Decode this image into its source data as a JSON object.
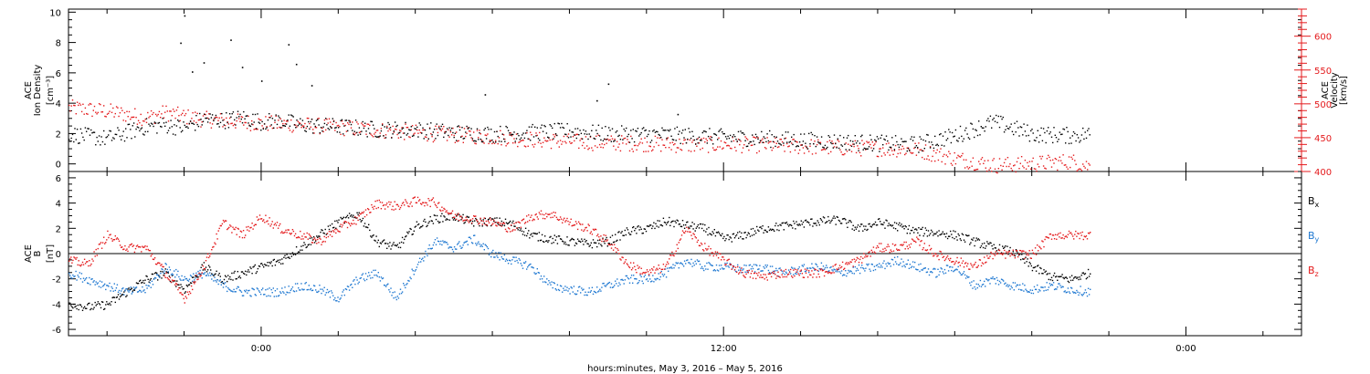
{
  "chart_data": [
    {
      "type": "scatter",
      "left_axis": {
        "label_lines": [
          "ACE",
          "Ion Density"
        ],
        "unit_label": "[cm⁻³]",
        "ylim": [
          -0.5,
          10.2
        ],
        "ticks": [
          0,
          2,
          4,
          6,
          8,
          10
        ]
      },
      "right_axis": {
        "label_lines": [
          "ACE",
          "Velocity"
        ],
        "unit_label": "[km/s]",
        "ylim": [
          400,
          640
        ],
        "ticks": [
          400,
          450,
          500,
          550,
          600
        ],
        "color": "#e41a1c"
      },
      "series": [
        {
          "name": "Ion Density",
          "axis": "left",
          "color": "#000000",
          "x": [
            -5.0,
            -4.0,
            -3.0,
            -2.5,
            -2.0,
            -1.5,
            -1.0,
            -0.5,
            0.0,
            0.5,
            1.0,
            2.0,
            3.0,
            4.0,
            5.0,
            6.0,
            7.0,
            8.0,
            9.0,
            10.0,
            11.0,
            12.0,
            13.0,
            14.0,
            15.0,
            16.0,
            17.0,
            18.0,
            19.0,
            20.0,
            21.0,
            21.5
          ],
          "y": [
            2.0,
            1.7,
            2.5,
            2.6,
            2.4,
            3.0,
            2.9,
            3.1,
            2.8,
            2.9,
            2.6,
            2.5,
            2.3,
            2.3,
            2.1,
            2.0,
            2.1,
            2.2,
            2.0,
            2.0,
            1.9,
            1.8,
            1.7,
            1.6,
            1.5,
            1.4,
            1.3,
            1.9,
            2.8,
            2.0,
            1.9,
            2.0
          ],
          "outliers": [
            [
              -2.0,
              9.8
            ],
            [
              -2.1,
              8.0
            ],
            [
              -0.8,
              8.2
            ],
            [
              -1.5,
              6.7
            ],
            [
              -0.5,
              6.4
            ],
            [
              0.7,
              7.9
            ],
            [
              0.9,
              6.6
            ],
            [
              -1.8,
              6.1
            ],
            [
              0.0,
              5.5
            ],
            [
              1.3,
              5.2
            ],
            [
              9.0,
              5.3
            ],
            [
              5.8,
              4.6
            ],
            [
              8.7,
              4.2
            ],
            [
              10.8,
              3.3
            ]
          ]
        },
        {
          "name": "Velocity",
          "axis": "right",
          "color": "#e41a1c",
          "x": [
            -5.0,
            -4.0,
            -3.0,
            -2.5,
            -2.0,
            -1.5,
            -1.0,
            0.0,
            1.0,
            2.0,
            3.0,
            4.0,
            5.0,
            6.0,
            7.0,
            8.0,
            9.0,
            10.0,
            11.0,
            12.0,
            13.0,
            14.0,
            15.0,
            16.0,
            17.0,
            18.0,
            19.0,
            20.0,
            21.0,
            21.5
          ],
          "y": [
            495,
            490,
            480,
            488,
            482,
            478,
            476,
            472,
            470,
            466,
            462,
            458,
            455,
            452,
            448,
            445,
            443,
            442,
            440,
            441,
            440,
            438,
            436,
            435,
            433,
            420,
            410,
            412,
            416,
            408
          ]
        }
      ]
    },
    {
      "type": "scatter",
      "left_axis": {
        "label_lines": [
          "ACE",
          "B"
        ],
        "unit_label": "[nT]",
        "ylim": [
          -6.5,
          6.5
        ],
        "ticks": [
          -6,
          -4,
          -2,
          0,
          2,
          4,
          6
        ]
      },
      "zero_line": true,
      "series": [
        {
          "name": "Bx",
          "label": "B",
          "sub": "x",
          "color": "#000000",
          "x": [
            -5.0,
            -4.5,
            -4.0,
            -3.5,
            -3.0,
            -2.5,
            -2.0,
            -1.5,
            -1.0,
            -0.5,
            0.0,
            0.5,
            1.0,
            1.5,
            2.0,
            2.5,
            3.0,
            3.5,
            4.0,
            4.5,
            5.0,
            5.5,
            6.0,
            6.5,
            7.0,
            7.5,
            8.0,
            8.5,
            9.0,
            9.5,
            10.0,
            10.5,
            11.0,
            11.5,
            12.0,
            12.5,
            13.0,
            13.5,
            14.0,
            14.5,
            15.0,
            15.5,
            16.0,
            16.5,
            17.0,
            17.5,
            18.0,
            18.5,
            19.0,
            19.5,
            20.0,
            20.5,
            21.0,
            21.5
          ],
          "y": [
            -3.9,
            -4.2,
            -4.0,
            -3.0,
            -2.0,
            -1.5,
            -2.8,
            -1.0,
            -2.0,
            -1.5,
            -1.0,
            -0.5,
            0.5,
            1.5,
            2.5,
            3.2,
            1.0,
            0.5,
            2.2,
            2.8,
            3.0,
            2.5,
            2.6,
            2.4,
            1.5,
            1.2,
            1.0,
            0.8,
            1.0,
            1.8,
            2.0,
            2.6,
            2.3,
            2.0,
            1.2,
            1.5,
            2.0,
            2.2,
            2.4,
            2.6,
            2.7,
            2.0,
            2.5,
            2.2,
            1.8,
            1.7,
            1.5,
            1.0,
            0.5,
            0.2,
            -1.0,
            -1.8,
            -2.0,
            -1.5
          ]
        },
        {
          "name": "By",
          "label": "B",
          "sub": "y",
          "color": "#1f78d1",
          "x": [
            -5.0,
            -4.5,
            -4.0,
            -3.5,
            -3.0,
            -2.5,
            -2.0,
            -1.5,
            -1.0,
            -0.5,
            0.0,
            0.5,
            1.0,
            1.5,
            2.0,
            2.5,
            3.0,
            3.5,
            4.0,
            4.5,
            5.0,
            5.5,
            6.0,
            6.5,
            7.0,
            7.5,
            8.0,
            8.5,
            9.0,
            9.5,
            10.0,
            10.5,
            11.0,
            11.5,
            12.0,
            12.5,
            13.0,
            13.5,
            14.0,
            14.5,
            15.0,
            15.5,
            16.0,
            16.5,
            17.0,
            17.5,
            18.0,
            18.5,
            19.0,
            19.5,
            20.0,
            20.5,
            21.0,
            21.5
          ],
          "y": [
            -1.5,
            -2.0,
            -2.5,
            -3.0,
            -2.8,
            -1.0,
            -2.0,
            -1.5,
            -2.5,
            -3.0,
            -3.0,
            -3.0,
            -2.5,
            -2.8,
            -3.5,
            -2.0,
            -1.5,
            -3.5,
            -1.0,
            1.0,
            0.5,
            1.2,
            0.0,
            -0.5,
            -1.0,
            -2.5,
            -2.8,
            -3.0,
            -2.5,
            -2.0,
            -2.0,
            -1.5,
            -0.5,
            -1.0,
            -1.0,
            -1.2,
            -1.0,
            -1.5,
            -1.2,
            -1.0,
            -1.5,
            -1.2,
            -1.0,
            -0.5,
            -1.0,
            -1.5,
            -1.0,
            -2.5,
            -2.0,
            -2.5,
            -2.8,
            -2.5,
            -2.8,
            -3.0
          ]
        },
        {
          "name": "Bz",
          "label": "B",
          "sub": "z",
          "color": "#e41a1c",
          "x": [
            -5.0,
            -4.5,
            -4.0,
            -3.5,
            -3.0,
            -2.5,
            -2.0,
            -1.5,
            -1.0,
            -0.5,
            0.0,
            0.5,
            1.0,
            1.5,
            2.0,
            2.5,
            3.0,
            3.5,
            4.0,
            4.5,
            5.0,
            5.5,
            6.0,
            6.5,
            7.0,
            7.5,
            8.0,
            8.5,
            9.0,
            9.5,
            10.0,
            10.5,
            11.0,
            11.5,
            12.0,
            12.5,
            13.0,
            13.5,
            14.0,
            14.5,
            15.0,
            15.5,
            16.0,
            16.5,
            17.0,
            17.5,
            18.0,
            18.5,
            19.0,
            19.5,
            20.0,
            20.5,
            21.0,
            21.5
          ],
          "y": [
            -0.5,
            -0.8,
            1.5,
            0.5,
            0.5,
            -1.5,
            -3.5,
            -1.0,
            2.5,
            1.5,
            3.0,
            2.0,
            1.5,
            1.0,
            2.0,
            2.8,
            4.0,
            3.8,
            4.2,
            4.1,
            3.0,
            2.8,
            2.5,
            2.0,
            3.0,
            3.2,
            2.5,
            2.0,
            1.0,
            -0.8,
            -1.5,
            -1.0,
            2.0,
            0.5,
            -0.5,
            -1.5,
            -1.8,
            -1.5,
            -1.5,
            -1.5,
            -1.0,
            -0.5,
            0.5,
            0.5,
            1.0,
            0.0,
            -0.5,
            -1.0,
            0.0,
            0.0,
            0.0,
            1.5,
            1.5,
            1.5
          ]
        }
      ]
    }
  ],
  "x_axis": {
    "xlim": [
      -5.0,
      27.0
    ],
    "major_ticks": [
      0,
      12,
      24
    ],
    "tick_labels": [
      "0:00",
      "12:00",
      "0:00"
    ],
    "minor_step": 2,
    "title": "hours:minutes, May  3, 2016 – May  5, 2016"
  },
  "legend": [
    {
      "label": "B",
      "sub": "x",
      "color": "#000000"
    },
    {
      "label": "B",
      "sub": "y",
      "color": "#1f78d1"
    },
    {
      "label": "B",
      "sub": "z",
      "color": "#e41a1c"
    }
  ]
}
